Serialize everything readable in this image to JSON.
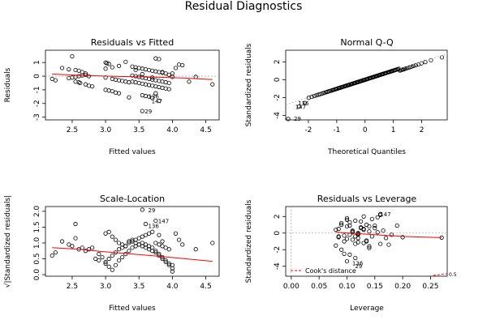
{
  "figure": {
    "title": "Residual Diagnostics"
  },
  "colors": {
    "smooth": "#ff0000",
    "points": "#000000",
    "refline": "#b0b0b0"
  },
  "chart_data": [
    {
      "type": "scatter",
      "title": "Residuals vs Fitted",
      "xlabel": "Fitted values",
      "ylabel": "Residuals",
      "xlim": [
        2.1,
        4.7
      ],
      "ylim": [
        -3.2,
        1.9
      ],
      "xticks": [
        2.5,
        3.0,
        3.5,
        4.0,
        4.5
      ],
      "xtick_labels": [
        "2.5",
        "3.0",
        "3.5",
        "4.0",
        "4.5"
      ],
      "yticks": [
        -3,
        -2,
        -1,
        0,
        1
      ],
      "ytick_labels": [
        "-3",
        "-2",
        "-1",
        "0",
        "1"
      ],
      "hline": 0,
      "x": [
        2.2,
        2.25,
        2.35,
        2.45,
        2.5,
        2.55,
        2.6,
        2.65,
        2.7,
        2.55,
        2.6,
        2.62,
        2.7,
        2.75,
        2.8,
        2.45,
        2.5,
        2.55,
        2.6,
        2.65,
        2.7,
        2.75,
        3.0,
        3.02,
        3.05,
        3.0,
        3.1,
        3.15,
        3.2,
        3.25,
        3.3,
        3.35,
        3.0,
        3.05,
        3.1,
        3.15,
        3.2,
        3.4,
        3.45,
        3.5,
        3.55,
        3.6,
        3.65,
        3.7,
        3.75,
        3.8,
        3.85,
        3.9,
        3.4,
        3.45,
        3.5,
        3.55,
        3.6,
        3.65,
        3.7,
        3.75,
        3.8,
        3.85,
        3.9,
        3.95,
        3.4,
        3.45,
        3.5,
        3.55,
        3.6,
        3.65,
        3.7,
        3.75,
        3.8,
        3.85,
        3.9,
        3.95,
        3.55,
        3.6,
        3.65,
        3.7,
        3.75,
        3.8,
        3.75,
        3.8,
        3.55,
        3.7,
        3.55,
        4.0,
        4.05,
        4.1,
        4.15,
        4.25,
        4.35,
        4.6,
        3.3,
        3.1,
        3.0,
        3.2,
        3.85,
        3.95,
        4.0,
        3.35,
        3.45
      ],
      "y": [
        -0.2,
        -0.3,
        0.6,
        0.5,
        1.45,
        0.45,
        0.4,
        0.3,
        0.2,
        -0.4,
        -0.45,
        -0.5,
        -0.6,
        -0.7,
        -0.75,
        -0.15,
        -0.1,
        -0.05,
        0.0,
        0.05,
        0.1,
        0.0,
        1.0,
        0.95,
        0.9,
        -0.1,
        -0.2,
        -0.25,
        -0.3,
        -0.35,
        -0.4,
        -0.45,
        -1.0,
        -1.05,
        -1.1,
        -1.2,
        -1.25,
        0.7,
        0.65,
        0.6,
        0.55,
        0.5,
        0.45,
        0.4,
        0.35,
        0.3,
        0.25,
        0.2,
        -0.4,
        -0.45,
        -0.5,
        -0.55,
        -0.6,
        -0.65,
        -0.7,
        -0.75,
        -0.8,
        -0.85,
        -0.9,
        -0.95,
        0.05,
        0.0,
        -0.05,
        -0.1,
        -0.15,
        -0.2,
        -0.25,
        -0.3,
        -0.35,
        -0.4,
        -0.45,
        -0.5,
        -1.4,
        -1.45,
        -1.5,
        -1.6,
        -1.25,
        -1.8,
        1.3,
        1.25,
        -2.55,
        -0.1,
        0.15,
        0.2,
        0.6,
        0.85,
        0.8,
        -0.4,
        -0.05,
        -0.6,
        1.05,
        0.65,
        0.55,
        0.75,
        0.3,
        0.1,
        -0.05,
        -1.55,
        0.45
      ],
      "smooth": {
        "x": [
          2.2,
          2.7,
          3.2,
          3.7,
          4.2,
          4.6
        ],
        "y": [
          0.15,
          0.05,
          -0.02,
          -0.06,
          -0.14,
          -0.25
        ]
      },
      "annotations": [
        {
          "text": "136",
          "x": 3.6,
          "y": -1.45
        },
        {
          "text": "147",
          "x": 3.65,
          "y": -1.8
        },
        {
          "text": "29",
          "x": 3.55,
          "y": -2.55
        }
      ]
    },
    {
      "type": "scatter",
      "title": "Normal Q-Q",
      "xlabel": "Theoretical Quantiles",
      "ylabel": "Standardized residuals",
      "xlim": [
        -2.8,
        2.9
      ],
      "ylim": [
        -4.5,
        3.3
      ],
      "xticks": [
        -2,
        -1,
        0,
        1,
        2
      ],
      "xtick_labels": [
        "-2",
        "-1",
        "0",
        "1",
        "2"
      ],
      "yticks": [
        -4,
        -2,
        0,
        2
      ],
      "ytick_labels": [
        "-4",
        "-2",
        "0",
        "2"
      ],
      "qq_points": 150,
      "qq_tails": {
        "low": -4.4,
        "high": 2.5
      },
      "refline": {
        "x": [
          -2.8,
          2.9
        ],
        "y": [
          -2.8,
          2.9
        ]
      },
      "annotations": [
        {
          "text": "136",
          "x": -2.45,
          "y": -2.6
        },
        {
          "text": "147",
          "x": -2.55,
          "y": -3.0
        },
        {
          "text": "29",
          "x": -2.6,
          "y": -4.3
        }
      ]
    },
    {
      "type": "scatter",
      "title": "Scale-Location",
      "xlabel": "Fitted values",
      "ylabel": "√|Standardized residuals|",
      "xlim": [
        2.1,
        4.7
      ],
      "ylim": [
        -0.05,
        2.15
      ],
      "xticks": [
        2.5,
        3.0,
        3.5,
        4.0,
        4.5
      ],
      "xtick_labels": [
        "2.5",
        "3.0",
        "3.5",
        "4.0",
        "4.5"
      ],
      "yticks": [
        0.0,
        0.5,
        1.0,
        1.5,
        2.0
      ],
      "ytick_labels": [
        "0.0",
        "0.5",
        "1.0",
        "1.5",
        "2.0"
      ],
      "x": [
        2.2,
        2.25,
        2.35,
        2.45,
        2.5,
        2.55,
        2.6,
        2.65,
        2.7,
        2.75,
        2.8,
        2.9,
        2.95,
        3.0,
        3.05,
        3.1,
        3.15,
        3.2,
        3.25,
        3.3,
        3.35,
        3.4,
        3.45,
        3.5,
        3.55,
        3.6,
        3.65,
        3.7,
        3.75,
        3.8,
        3.85,
        3.9,
        3.95,
        4.0,
        2.85,
        2.9,
        3.0,
        3.05,
        3.1,
        3.15,
        3.2,
        3.25,
        3.3,
        3.35,
        3.4,
        3.45,
        3.5,
        3.55,
        3.6,
        3.65,
        3.7,
        3.75,
        3.8,
        3.85,
        3.9,
        3.95,
        4.0,
        3.0,
        3.05,
        3.1,
        3.15,
        3.2,
        3.25,
        3.3,
        3.35,
        3.4,
        3.45,
        3.5,
        3.55,
        3.6,
        3.65,
        3.7,
        3.75,
        3.8,
        3.85,
        3.9,
        3.95,
        4.0,
        4.05,
        4.1,
        4.15,
        4.35,
        4.6,
        2.55,
        3.55,
        3.6,
        3.75,
        3.8,
        3.85
      ],
      "y": [
        0.6,
        0.7,
        1.05,
        0.95,
        0.9,
        1.6,
        0.8,
        0.85,
        0.75,
        0.8,
        0.85,
        0.65,
        0.55,
        1.3,
        1.35,
        1.2,
        1.1,
        1.0,
        0.95,
        0.9,
        1.05,
        1.1,
        1.0,
        0.95,
        0.9,
        0.85,
        0.8,
        0.75,
        0.7,
        0.6,
        0.5,
        0.4,
        0.3,
        0.1,
        0.5,
        0.45,
        0.35,
        0.25,
        0.15,
        0.3,
        0.45,
        0.55,
        0.65,
        0.75,
        0.85,
        0.9,
        0.95,
        1.0,
        0.95,
        0.9,
        0.85,
        0.75,
        0.65,
        0.55,
        0.45,
        0.35,
        0.2,
        0.4,
        0.5,
        0.6,
        0.7,
        0.8,
        0.85,
        0.9,
        1.0,
        1.05,
        1.1,
        1.15,
        1.2,
        1.25,
        1.3,
        1.35,
        1.0,
        0.95,
        0.9,
        0.85,
        0.8,
        0.3,
        1.3,
        1.1,
        0.95,
        0.8,
        1.0,
        1.15,
        2.05,
        1.6,
        1.7,
        1.25,
        1.05
      ],
      "smooth": {
        "x": [
          2.2,
          2.6,
          3.0,
          3.4,
          3.8,
          4.2,
          4.6
        ],
        "y": [
          0.85,
          0.8,
          0.72,
          0.65,
          0.58,
          0.5,
          0.42
        ]
      },
      "annotations": [
        {
          "text": "29",
          "x": 3.6,
          "y": 2.05
        },
        {
          "text": "147",
          "x": 3.75,
          "y": 1.7
        },
        {
          "text": "136",
          "x": 3.6,
          "y": 1.55
        }
      ]
    },
    {
      "type": "scatter",
      "title": "Residuals vs Leverage",
      "xlabel": "Leverage",
      "ylabel": "Standardized residuals",
      "xlim": [
        -0.01,
        0.28
      ],
      "ylim": [
        -5.2,
        3.2
      ],
      "xticks": [
        0.0,
        0.05,
        0.1,
        0.15,
        0.2,
        0.25
      ],
      "xtick_labels": [
        "0.00",
        "0.05",
        "0.10",
        "0.15",
        "0.20",
        "0.25"
      ],
      "yticks": [
        -4,
        -2,
        0,
        2
      ],
      "ytick_labels": [
        "-4",
        "-2",
        "0",
        "2"
      ],
      "x": [
        0.08,
        0.085,
        0.09,
        0.095,
        0.1,
        0.105,
        0.11,
        0.115,
        0.12,
        0.125,
        0.13,
        0.135,
        0.14,
        0.145,
        0.15,
        0.08,
        0.09,
        0.1,
        0.11,
        0.12,
        0.13,
        0.14,
        0.085,
        0.095,
        0.105,
        0.115,
        0.125,
        0.135,
        0.145,
        0.155,
        0.09,
        0.1,
        0.11,
        0.12,
        0.13,
        0.14,
        0.15,
        0.16,
        0.095,
        0.105,
        0.115,
        0.125,
        0.135,
        0.155,
        0.16,
        0.165,
        0.17,
        0.175,
        0.19,
        0.2,
        0.1,
        0.11,
        0.12,
        0.13,
        0.085,
        0.1,
        0.12,
        0.14,
        0.16,
        0.18,
        0.27,
        0.105,
        0.115
      ],
      "y": [
        0.4,
        -0.5,
        1.2,
        -1.0,
        0.8,
        -0.2,
        0.3,
        1.5,
        -0.6,
        0.6,
        -1.2,
        1.0,
        0.2,
        -0.4,
        0.9,
        -1.5,
        -2.0,
        1.8,
        -0.8,
        0.0,
        2.0,
        -1.6,
        0.5,
        -0.3,
        1.3,
        -1.3,
        0.7,
        -0.9,
        1.7,
        0.1,
        1.0,
        -0.7,
        0.2,
        -0.1,
        0.4,
        -1.8,
        0.6,
        2.2,
        -2.5,
        0.9,
        -0.4,
        1.4,
        -1.0,
        1.9,
        2.3,
        0.3,
        -0.6,
        -1.4,
        0.9,
        -0.5,
        -3.4,
        0.1,
        -0.2,
        0.5,
        -0.4,
        1.6,
        -1.1,
        0.8,
        -1.3,
        -0.2,
        -0.55,
        -2.6,
        -3.0
      ],
      "smooth": {
        "x": [
          0.08,
          0.15,
          0.2,
          0.27
        ],
        "y": [
          0.1,
          -0.2,
          -0.4,
          -0.55
        ]
      },
      "refline_h": 0,
      "cooks": {
        "x": [
          0.255,
          0.28
        ],
        "y": [
          -5.1,
          -4.9
        ],
        "label": "0.5"
      },
      "legend": {
        "text": "Cook's distance",
        "position": "bottom-left"
      },
      "annotations": [
        {
          "text": "136",
          "x": 0.105,
          "y": -3.6
        },
        {
          "text": "29",
          "x": 0.11,
          "y": -3.95
        },
        {
          "text": "147",
          "x": 0.155,
          "y": 2.3
        }
      ]
    }
  ]
}
